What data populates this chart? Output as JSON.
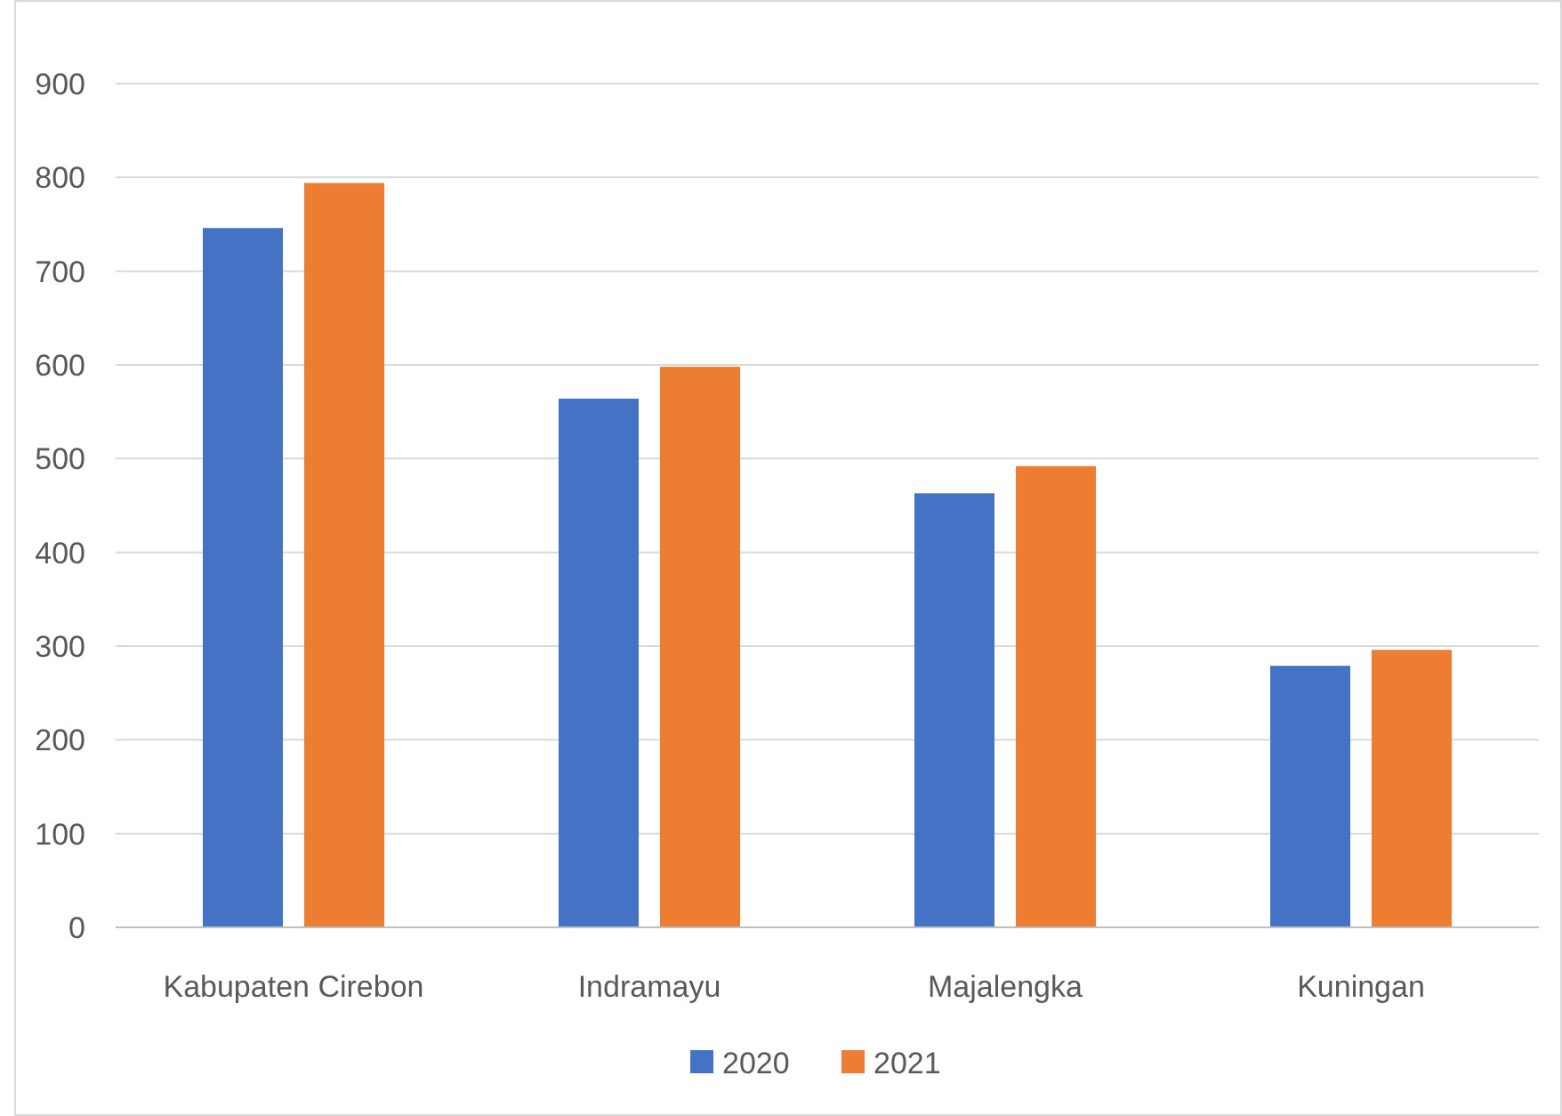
{
  "chart_data": {
    "type": "bar",
    "categories": [
      "Kabupaten Cirebon",
      "Indramayu",
      "Majalengka",
      "Kuningan"
    ],
    "series": [
      {
        "name": "2020",
        "color": "#4472c4",
        "values": [
          746,
          564,
          463,
          279
        ]
      },
      {
        "name": "2021",
        "color": "#ed7d31",
        "values": [
          794,
          598,
          492,
          296
        ]
      }
    ],
    "ylim": [
      0,
      900
    ],
    "yticks": [
      0,
      100,
      200,
      300,
      400,
      500,
      600,
      700,
      800,
      900
    ],
    "grid": "y",
    "legend": "bottom"
  }
}
